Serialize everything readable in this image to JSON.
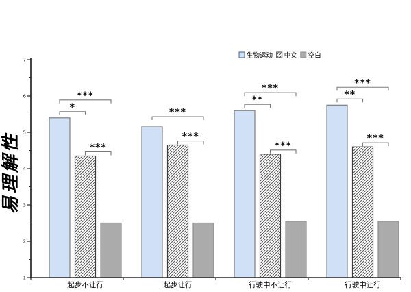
{
  "chart_data": {
    "type": "bar",
    "title": "",
    "xlabel": "",
    "ylabel": "易理解性",
    "ylim": [
      1,
      7
    ],
    "yticks": [
      1,
      2,
      3,
      4,
      5,
      6,
      7
    ],
    "minor_ticks": true,
    "grid": false,
    "legend_position": "top-center",
    "categories": [
      "起步不让行",
      "起步让行",
      "行驶中不让行",
      "行驶中让行"
    ],
    "series": [
      {
        "name": "生物运动",
        "style": "solid-blue",
        "values": [
          5.4,
          5.15,
          5.6,
          5.75
        ]
      },
      {
        "name": "中文",
        "style": "hatched",
        "values": [
          4.35,
          4.65,
          4.4,
          4.6
        ]
      },
      {
        "name": "空白",
        "style": "solid-gray",
        "values": [
          2.5,
          2.5,
          2.55,
          2.55
        ]
      }
    ],
    "significance": [
      {
        "category": "起步不让行",
        "between": [
          "生物运动",
          "中文"
        ],
        "stars": "*"
      },
      {
        "category": "起步不让行",
        "between": [
          "生物运动",
          "空白"
        ],
        "stars": "***"
      },
      {
        "category": "起步不让行",
        "between": [
          "中文",
          "空白"
        ],
        "stars": "***"
      },
      {
        "category": "起步让行",
        "between": [
          "生物运动",
          "空白"
        ],
        "stars": "***"
      },
      {
        "category": "起步让行",
        "between": [
          "中文",
          "空白"
        ],
        "stars": "***"
      },
      {
        "category": "行驶中不让行",
        "between": [
          "生物运动",
          "中文"
        ],
        "stars": "**"
      },
      {
        "category": "行驶中不让行",
        "between": [
          "生物运动",
          "空白"
        ],
        "stars": "***"
      },
      {
        "category": "行驶中不让行",
        "between": [
          "中文",
          "空白"
        ],
        "stars": "***"
      },
      {
        "category": "行驶中让行",
        "between": [
          "生物运动",
          "中文"
        ],
        "stars": "**"
      },
      {
        "category": "行驶中让行",
        "between": [
          "生物运动",
          "空白"
        ],
        "stars": "***"
      },
      {
        "category": "行驶中让行",
        "between": [
          "中文",
          "空白"
        ],
        "stars": "***"
      }
    ],
    "colors": {
      "bar_blue": "#CFE0F7",
      "bar_blue_border": "#7F7F7F",
      "bar_gray": "#ABABAB",
      "bar_gray_border": "#8C8C8C",
      "hatch_line": "#555555",
      "hatch_border": "#3F3F3F",
      "legend_blue_border": "#44608C",
      "bracket": "#7A7A7A",
      "axis": "#262626",
      "text": "#000000"
    }
  }
}
